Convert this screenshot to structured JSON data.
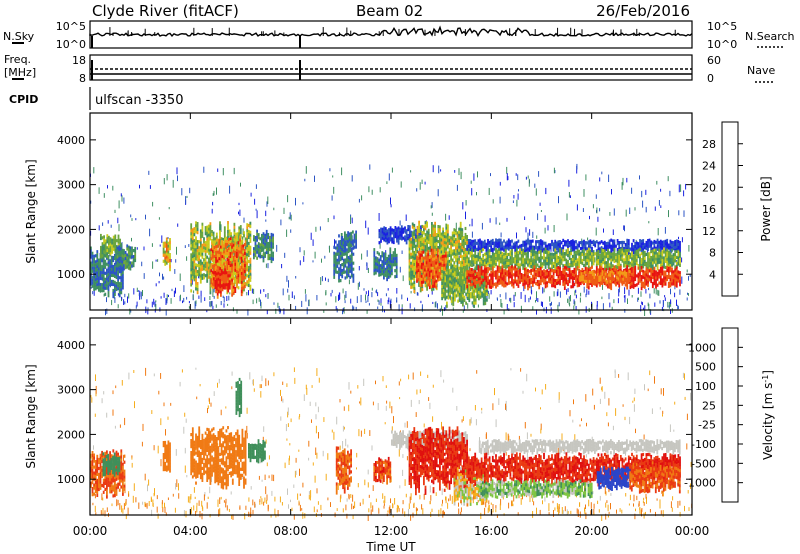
{
  "header": {
    "station": "Clyde River (fitACF)",
    "beam": "Beam 02",
    "date": "26/Feb/2016"
  },
  "strip_left": {
    "nsky_label": "N.Sky",
    "nsky_ticks": [
      "10^5",
      "10^0"
    ],
    "freq_label_1": "Freq.",
    "freq_label_2": "[MHz]",
    "freq_ticks": [
      "18",
      "8"
    ],
    "cpid_label": "CPID"
  },
  "strip_right": {
    "nsearch_label": "N.Search",
    "nsearch_ticks": [
      "10^5",
      "10^0"
    ],
    "nave_label": "Nave",
    "nave_ticks": [
      "60",
      "0"
    ]
  },
  "cpid_value": "ulfscan -3350",
  "axes": {
    "ylabel": "Slant Range [km]",
    "yticks": [
      1000,
      2000,
      3000,
      4000
    ],
    "ylim": [
      200,
      4600
    ],
    "xlabel": "Time UT",
    "xtick_labels": [
      "00:00",
      "04:00",
      "08:00",
      "12:00",
      "16:00",
      "20:00",
      "00:00"
    ],
    "xticks_hours": [
      0,
      4,
      8,
      12,
      16,
      20,
      24
    ],
    "xlim_hours": [
      0,
      24
    ]
  },
  "colorbars": {
    "power": {
      "label": "Power [dB]",
      "ticks": [
        "4",
        "8",
        "12",
        "16",
        "20",
        "24",
        "28"
      ],
      "colors": [
        "#1a22e0",
        "#2c55c4",
        "#3f8f62",
        "#6aa53e",
        "#c9cc1e",
        "#f39a18",
        "#ef5a14",
        "#e81410"
      ]
    },
    "velocity": {
      "label": "Velocity [m s",
      "label_sup": "-1",
      "label_end": "]",
      "ticks": [
        "1000",
        "500",
        "100",
        "25",
        "-25",
        "-100",
        "-500",
        "-1000"
      ],
      "colors": [
        "#2a45c9",
        "#3c6fae",
        "#3f8f5a",
        "#7ec441",
        "#c6c6c0",
        "#f5ad1c",
        "#f07a14",
        "#ea3a12",
        "#e0100e"
      ]
    }
  },
  "chart_data": {
    "type": "heatmap",
    "x_unit": "hours UT",
    "y_unit": "km",
    "panels": [
      {
        "name": "Power",
        "regions": [
          {
            "t": [
              0.0,
              1.3
            ],
            "r": [
              500,
              1700
            ],
            "level": [
              1,
              2
            ]
          },
          {
            "t": [
              0.4,
              1.2
            ],
            "r": [
              1400,
              1900
            ],
            "level": [
              2,
              4
            ]
          },
          {
            "t": [
              1.0,
              1.8
            ],
            "r": [
              1100,
              1700
            ],
            "level": [
              1,
              3
            ]
          },
          {
            "t": [
              2.9,
              3.2
            ],
            "r": [
              1100,
              1900
            ],
            "level": [
              3,
              6
            ]
          },
          {
            "t": [
              4.0,
              6.4
            ],
            "r": [
              600,
              2200
            ],
            "level": [
              2,
              5
            ]
          },
          {
            "t": [
              4.8,
              6.2
            ],
            "r": [
              500,
              1900
            ],
            "level": [
              4,
              7
            ]
          },
          {
            "t": [
              4.9,
              5.6
            ],
            "r": [
              600,
              1200
            ],
            "level": [
              6,
              7
            ]
          },
          {
            "t": [
              6.5,
              7.3
            ],
            "r": [
              1300,
              2000
            ],
            "level": [
              1,
              3
            ]
          },
          {
            "t": [
              9.7,
              10.5
            ],
            "r": [
              800,
              1900
            ],
            "level": [
              1,
              2
            ]
          },
          {
            "t": [
              10.0,
              10.6
            ],
            "r": [
              1600,
              2000
            ],
            "level": [
              1,
              2
            ]
          },
          {
            "t": [
              11.3,
              12.2
            ],
            "r": [
              900,
              1600
            ],
            "level": [
              1,
              2
            ]
          },
          {
            "t": [
              11.5,
              13.2
            ],
            "r": [
              1700,
              2100
            ],
            "level": [
              0,
              1
            ]
          },
          {
            "t": [
              12.7,
              15.0
            ],
            "r": [
              600,
              2200
            ],
            "level": [
              2,
              5
            ]
          },
          {
            "t": [
              13.0,
              14.2
            ],
            "r": [
              700,
              1600
            ],
            "level": [
              5,
              7
            ]
          },
          {
            "t": [
              14.0,
              15.8
            ],
            "r": [
              300,
              1200
            ],
            "level": [
              2,
              4
            ]
          },
          {
            "t": [
              15.0,
              23.5
            ],
            "r": [
              1500,
              1800
            ],
            "level": [
              0,
              1
            ]
          },
          {
            "t": [
              15.0,
              23.5
            ],
            "r": [
              1100,
              1600
            ],
            "level": [
              2,
              4
            ]
          },
          {
            "t": [
              15.0,
              23.5
            ],
            "r": [
              700,
              1200
            ],
            "level": [
              6,
              7
            ]
          },
          {
            "t": [
              19.5,
              21.5
            ],
            "r": [
              800,
              1100
            ],
            "level": [
              5,
              6
            ]
          }
        ]
      },
      {
        "name": "Velocity",
        "regions": [
          {
            "t": [
              0.0,
              1.4
            ],
            "r": [
              600,
              1700
            ],
            "level": [
              6,
              7
            ]
          },
          {
            "t": [
              0.5,
              1.2
            ],
            "r": [
              1100,
              1600
            ],
            "level": [
              2,
              2
            ]
          },
          {
            "t": [
              2.9,
              3.2
            ],
            "r": [
              1100,
              1900
            ],
            "level": [
              6,
              6
            ]
          },
          {
            "t": [
              4.0,
              6.2
            ],
            "r": [
              800,
              2200
            ],
            "level": [
              6,
              6
            ]
          },
          {
            "t": [
              5.8,
              6.0
            ],
            "r": [
              2400,
              3300
            ],
            "level": [
              2,
              2
            ]
          },
          {
            "t": [
              6.3,
              7.0
            ],
            "r": [
              1400,
              1900
            ],
            "level": [
              2,
              2
            ]
          },
          {
            "t": [
              9.8,
              10.4
            ],
            "r": [
              700,
              1800
            ],
            "level": [
              6,
              7
            ]
          },
          {
            "t": [
              11.3,
              12.0
            ],
            "r": [
              900,
              1500
            ],
            "level": [
              6,
              8
            ]
          },
          {
            "t": [
              12.0,
              15.0
            ],
            "r": [
              1700,
              2100
            ],
            "level": [
              4,
              4
            ]
          },
          {
            "t": [
              12.7,
              15.0
            ],
            "r": [
              700,
              2200
            ],
            "level": [
              7,
              8
            ]
          },
          {
            "t": [
              14.5,
              15.8
            ],
            "r": [
              400,
              1300
            ],
            "level": [
              3,
              6
            ]
          },
          {
            "t": [
              15.5,
              23.5
            ],
            "r": [
              1600,
              1900
            ],
            "level": [
              4,
              4
            ]
          },
          {
            "t": [
              15.0,
              23.5
            ],
            "r": [
              900,
              1600
            ],
            "level": [
              7,
              8
            ]
          },
          {
            "t": [
              15.5,
              20.0
            ],
            "r": [
              600,
              1000
            ],
            "level": [
              2,
              4
            ]
          },
          {
            "t": [
              20.2,
              21.5
            ],
            "r": [
              800,
              1300
            ],
            "level": [
              0,
              0
            ]
          },
          {
            "t": [
              21.5,
              23.5
            ],
            "r": [
              700,
              1400
            ],
            "level": [
              6,
              7
            ]
          }
        ]
      }
    ]
  }
}
